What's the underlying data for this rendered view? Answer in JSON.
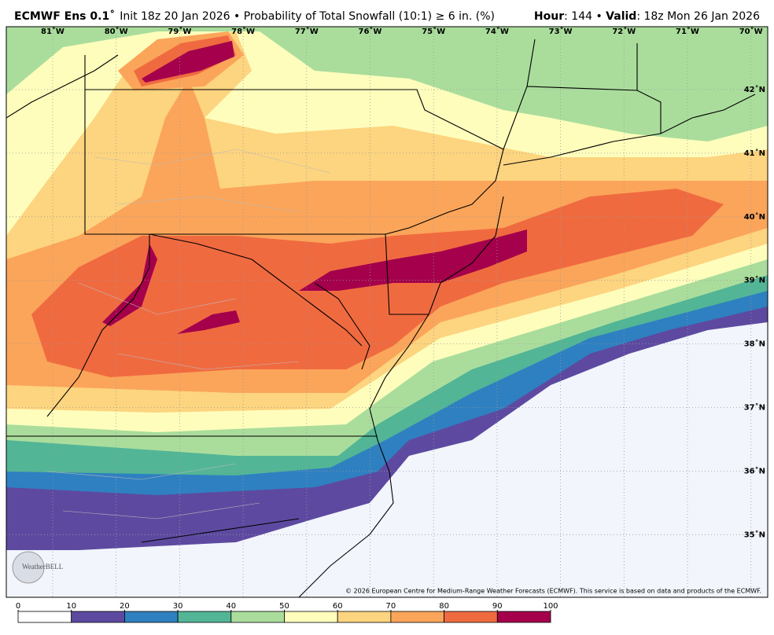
{
  "header": {
    "model": "ECMWF Ens 0.1˚",
    "description": "Init 18z 20 Jan 2026 • Probability of Total Snowfall (10:1) ≥ 6 in. (%)",
    "hour_label": "Hour",
    "hour_value": ": 144 • ",
    "valid_label": "Valid",
    "valid_value": ": 18z Mon 26 Jan 2026"
  },
  "map": {
    "longitudes": [
      "81˚W",
      "80˚W",
      "79˚W",
      "78˚W",
      "77˚W",
      "76˚W",
      "75˚W",
      "74˚W",
      "73˚W",
      "72˚W",
      "71˚W",
      "70˚W"
    ],
    "latitudes": [
      "42˚N",
      "41˚N",
      "40˚N",
      "39˚N",
      "38˚N",
      "37˚N",
      "36˚N",
      "35˚N"
    ],
    "copyright": "© 2026 European Centre for Medium-Range Weather Forecasts (ECMWF). This service is based on data and products of the ECMWF.",
    "logo": "WeatherBELL"
  },
  "colorbar": {
    "ticks": [
      0,
      10,
      20,
      30,
      40,
      50,
      60,
      70,
      80,
      90,
      100
    ],
    "colors": [
      "#ffffff",
      "#5d4aa0",
      "#2f80c0",
      "#52b596",
      "#aadd9c",
      "#fefdbc",
      "#fdd47f",
      "#fba55a",
      "#f06a40",
      "#a4004b"
    ]
  }
}
